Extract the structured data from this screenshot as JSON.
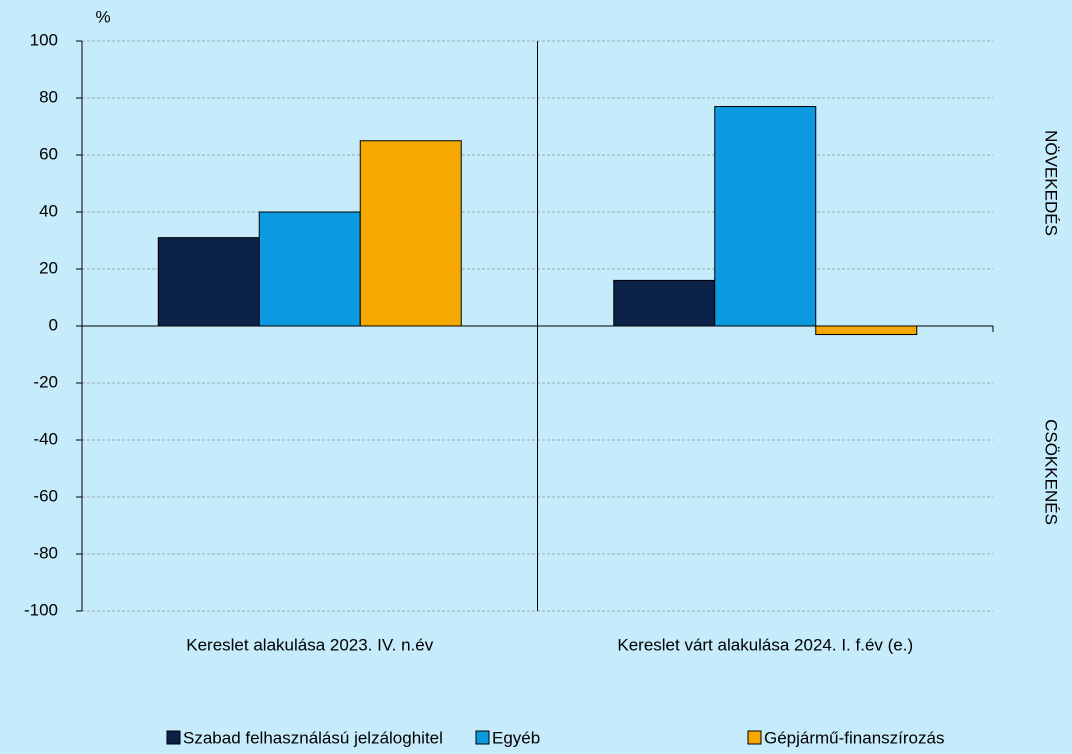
{
  "chart_data": {
    "type": "bar",
    "y_unit": "%",
    "categories": [
      "Kereslet alakulása 2023. IV. n.év",
      "Kereslet várt alakulása 2024. I. f.év (e.)"
    ],
    "series": [
      {
        "name": "Szabad felhasználású jelzáloghitel",
        "color": "#0c2148",
        "values": [
          31,
          16
        ]
      },
      {
        "name": "Egyéb",
        "color": "#0b9ae0",
        "values": [
          40,
          77
        ]
      },
      {
        "name": "Gépjármű-finanszírozás",
        "color": "#f5a800",
        "values": [
          65,
          -3
        ]
      }
    ],
    "ylim": [
      -100,
      100
    ],
    "yticks": [
      -100,
      -80,
      -60,
      -40,
      -20,
      0,
      20,
      40,
      60,
      80,
      100
    ],
    "grid": true,
    "annotations": [
      "NÖVEKEDÉS",
      "CSÖKKENÉS"
    ]
  }
}
